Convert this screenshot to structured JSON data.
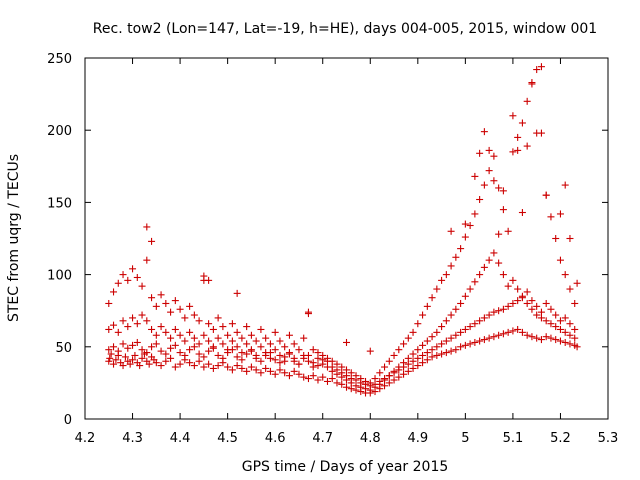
{
  "chart_data": {
    "type": "scatter",
    "title": "Rec. tow2 (Lon=147, Lat=-19, h=HE), days 004-005, 2015, window 001",
    "xlabel": "GPS time / Days of year 2015",
    "ylabel": "STEC from uqrg / TECUs",
    "xlim": [
      4.2,
      5.3
    ],
    "ylim": [
      0,
      250
    ],
    "xticks": [
      "4.2",
      "4.3",
      "4.4",
      "4.5",
      "4.6",
      "4.7",
      "4.8",
      "4.9",
      "5",
      "5.1",
      "5.2",
      "5.3"
    ],
    "yticks": [
      "0",
      "50",
      "100",
      "150",
      "200",
      "250"
    ],
    "grid": false,
    "legend": "none",
    "marker": "plus",
    "color": "#cc0000",
    "series": [
      {
        "x": [
          4.25,
          4.252,
          4.255,
          4.26,
          4.265,
          4.27,
          4.275,
          4.28,
          4.285,
          4.29,
          4.295,
          4.3,
          4.305,
          4.31,
          4.315,
          4.32,
          4.325,
          4.33,
          4.335,
          4.34,
          4.345,
          4.35,
          4.36,
          4.37,
          4.38,
          4.39,
          4.4,
          4.41,
          4.42,
          4.43,
          4.44,
          4.45,
          4.46,
          4.47,
          4.48,
          4.49,
          4.5,
          4.51,
          4.52,
          4.53,
          4.54,
          4.55,
          4.56,
          4.57,
          4.58,
          4.59,
          4.6,
          4.61,
          4.62,
          4.63,
          4.64,
          4.65,
          4.66,
          4.67,
          4.68,
          4.69,
          4.7,
          4.71,
          4.72,
          4.73,
          4.74,
          4.75,
          4.76,
          4.77,
          4.78,
          4.79,
          4.8,
          4.81,
          4.82,
          4.83,
          4.84,
          4.85,
          4.86,
          4.87,
          4.88,
          4.89,
          4.9,
          4.91,
          4.92,
          4.93,
          4.94,
          4.95,
          4.96,
          4.97,
          4.98,
          4.99,
          5.0,
          5.01,
          5.02,
          5.03,
          5.04,
          5.05,
          5.06,
          5.07,
          5.08,
          5.09,
          5.1,
          5.11,
          5.12,
          5.13,
          5.14,
          5.15,
          5.16,
          5.17,
          5.18,
          5.19,
          5.2,
          5.21,
          5.22,
          5.23,
          5.235
        ],
        "y": [
          40,
          42,
          45,
          38,
          41,
          44,
          39,
          37,
          43,
          40,
          38,
          41,
          44,
          39,
          37,
          42,
          45,
          40,
          38,
          43,
          41,
          39,
          37,
          40,
          42,
          36,
          38,
          41,
          39,
          37,
          40,
          36,
          38,
          35,
          37,
          39,
          36,
          34,
          37,
          35,
          33,
          36,
          34,
          32,
          35,
          33,
          31,
          34,
          32,
          30,
          33,
          31,
          29,
          28,
          30,
          27,
          29,
          26,
          28,
          25,
          24,
          22,
          21,
          20,
          19,
          18,
          18,
          19,
          21,
          23,
          25,
          27,
          29,
          31,
          33,
          35,
          37,
          39,
          41,
          43,
          44,
          45,
          46,
          47,
          48,
          50,
          51,
          52,
          53,
          54,
          55,
          56,
          57,
          58,
          59,
          60,
          61,
          62,
          60,
          58,
          57,
          56,
          55,
          57,
          56,
          55,
          54,
          53,
          52,
          51,
          50
        ]
      },
      {
        "x": [
          4.25,
          4.26,
          4.27,
          4.28,
          4.29,
          4.3,
          4.31,
          4.32,
          4.33,
          4.34,
          4.35,
          4.36,
          4.37,
          4.38,
          4.39,
          4.4,
          4.41,
          4.42,
          4.43,
          4.44,
          4.45,
          4.46,
          4.47,
          4.48,
          4.49,
          4.5,
          4.51,
          4.52,
          4.53,
          4.54,
          4.55,
          4.56,
          4.57,
          4.58,
          4.59,
          4.6,
          4.61,
          4.62,
          4.63,
          4.64,
          4.65,
          4.66,
          4.67,
          4.68,
          4.69,
          4.7,
          4.71,
          4.72,
          4.73,
          4.74,
          4.75,
          4.76,
          4.77,
          4.78,
          4.79,
          4.8,
          4.81,
          4.82,
          4.83,
          4.84,
          4.85,
          4.86,
          4.87,
          4.88,
          4.89,
          4.9,
          4.91,
          4.92,
          4.93,
          4.94,
          4.95,
          4.96,
          4.97,
          4.98,
          4.99,
          5.0,
          5.01,
          5.02,
          5.03,
          5.04,
          5.05,
          5.06,
          5.07,
          5.08,
          5.09,
          5.1,
          5.11,
          5.12,
          5.13,
          5.14,
          5.15,
          5.16,
          5.17,
          5.18,
          5.19,
          5.2,
          5.21,
          5.22,
          5.23
        ],
        "y": [
          48,
          50,
          47,
          52,
          49,
          51,
          53,
          48,
          46,
          50,
          52,
          47,
          45,
          49,
          51,
          46,
          44,
          48,
          50,
          45,
          43,
          47,
          49,
          44,
          42,
          46,
          48,
          43,
          41,
          45,
          47,
          42,
          40,
          44,
          46,
          41,
          39,
          43,
          45,
          40,
          38,
          42,
          44,
          39,
          37,
          41,
          40,
          36,
          34,
          32,
          30,
          28,
          27,
          25,
          24,
          23,
          24,
          26,
          28,
          30,
          32,
          34,
          36,
          38,
          40,
          42,
          44,
          46,
          48,
          50,
          52,
          54,
          56,
          58,
          60,
          62,
          64,
          66,
          68,
          70,
          72,
          74,
          75,
          76,
          78,
          80,
          82,
          84,
          80,
          76,
          72,
          70,
          68,
          66,
          64,
          62,
          60,
          58,
          56
        ]
      },
      {
        "x": [
          4.25,
          4.26,
          4.27,
          4.28,
          4.29,
          4.3,
          4.31,
          4.32,
          4.33,
          4.34,
          4.35,
          4.36,
          4.37,
          4.38,
          4.39,
          4.4,
          4.41,
          4.42,
          4.43,
          4.44,
          4.45,
          4.46,
          4.47,
          4.48,
          4.49,
          4.5,
          4.51,
          4.52,
          4.53,
          4.54,
          4.55,
          4.56,
          4.57,
          4.58,
          4.59,
          4.6,
          4.61,
          4.62,
          4.63,
          4.64,
          4.65,
          4.66,
          4.67,
          4.68,
          4.69,
          4.7,
          4.71,
          4.72,
          4.73,
          4.74,
          4.75,
          4.76,
          4.77,
          4.78,
          4.79,
          4.8,
          4.81,
          4.82,
          4.83,
          4.84,
          4.85,
          4.86,
          4.87,
          4.88,
          4.89,
          4.9,
          4.91,
          4.92,
          4.93,
          4.94,
          4.95,
          4.96,
          4.97,
          4.98,
          4.99,
          5.0,
          5.01,
          5.02,
          5.03,
          5.04,
          5.05,
          5.06,
          5.07,
          5.08,
          5.09,
          5.1,
          5.11,
          5.12,
          5.13,
          5.14,
          5.15,
          5.16,
          5.17,
          5.18,
          5.19,
          5.2,
          5.21,
          5.22,
          5.23
        ],
        "y": [
          62,
          65,
          60,
          68,
          64,
          70,
          66,
          72,
          68,
          62,
          58,
          64,
          60,
          56,
          62,
          58,
          54,
          60,
          56,
          52,
          58,
          54,
          50,
          56,
          52,
          48,
          54,
          50,
          46,
          52,
          48,
          44,
          50,
          46,
          42,
          48,
          44,
          40,
          46,
          42,
          38,
          44,
          40,
          36,
          42,
          38,
          36,
          33,
          31,
          29,
          27,
          25,
          23,
          22,
          21,
          20,
          22,
          24,
          27,
          30,
          33,
          36,
          39,
          42,
          45,
          48,
          51,
          54,
          57,
          60,
          64,
          68,
          72,
          76,
          80,
          85,
          90,
          95,
          100,
          105,
          110,
          115,
          108,
          100,
          92,
          96,
          90,
          85,
          88,
          82,
          78,
          74,
          80,
          76,
          72,
          68,
          70,
          66,
          62
        ]
      },
      {
        "x": [
          4.25,
          4.26,
          4.27,
          4.28,
          4.29,
          4.3,
          4.31,
          4.32,
          4.33,
          4.34,
          4.35,
          4.36,
          4.37,
          4.38,
          4.39,
          4.4,
          4.41,
          4.42,
          4.43,
          4.44,
          4.45,
          4.46,
          4.47,
          4.48,
          4.49,
          4.5,
          4.51,
          4.52,
          4.53,
          4.54,
          4.55,
          4.56,
          4.57,
          4.58,
          4.59,
          4.6,
          4.61,
          4.62,
          4.63,
          4.64,
          4.65,
          4.66,
          4.67,
          4.68,
          4.69,
          4.7,
          4.71,
          4.72,
          4.73,
          4.74,
          4.75,
          4.76,
          4.77,
          4.78,
          4.79,
          4.8,
          4.81,
          4.82,
          4.83,
          4.84,
          4.85,
          4.86,
          4.87,
          4.88,
          4.89,
          4.9,
          4.91,
          4.92,
          4.93,
          4.94,
          4.95,
          4.96,
          4.97,
          4.98,
          4.99,
          5.0,
          5.01,
          5.02,
          5.03,
          5.04,
          5.05,
          5.06,
          5.07,
          5.08,
          5.09,
          5.1,
          5.11,
          5.12,
          5.13,
          5.14,
          5.15,
          5.16,
          5.17,
          5.18,
          5.19,
          5.2,
          5.21,
          5.22,
          5.23
        ],
        "y": [
          80,
          88,
          94,
          100,
          96,
          104,
          98,
          92,
          110,
          84,
          78,
          86,
          80,
          74,
          82,
          76,
          70,
          78,
          72,
          68,
          96,
          66,
          62,
          70,
          64,
          58,
          66,
          60,
          56,
          64,
          58,
          54,
          62,
          56,
          52,
          60,
          54,
          50,
          58,
          52,
          48,
          56,
          73,
          48,
          46,
          44,
          42,
          40,
          38,
          36,
          34,
          32,
          30,
          28,
          26,
          25,
          28,
          32,
          36,
          40,
          44,
          48,
          52,
          56,
          60,
          66,
          72,
          78,
          84,
          90,
          96,
          100,
          106,
          112,
          118,
          126,
          134,
          142,
          152,
          162,
          172,
          182,
          160,
          145,
          130,
          185,
          195,
          205,
          220,
          232,
          242,
          198,
          155,
          140,
          125,
          110,
          100,
          90,
          80
        ]
      },
      {
        "x": [
          4.33,
          4.34,
          4.45,
          4.46,
          4.52,
          4.67,
          4.75,
          4.8,
          4.97,
          5.0,
          5.02,
          5.03,
          5.04,
          5.05,
          5.06,
          5.07,
          5.08,
          5.1,
          5.11,
          5.12,
          5.13,
          5.14,
          5.15,
          5.16,
          5.17,
          5.2,
          5.21,
          5.22,
          5.235
        ],
        "y": [
          133,
          123,
          99,
          96,
          87,
          74,
          53,
          47,
          130,
          135,
          168,
          184,
          199,
          186,
          165,
          128,
          158,
          210,
          186,
          143,
          189,
          233,
          198,
          244,
          155,
          142,
          162,
          125,
          94
        ]
      }
    ]
  }
}
